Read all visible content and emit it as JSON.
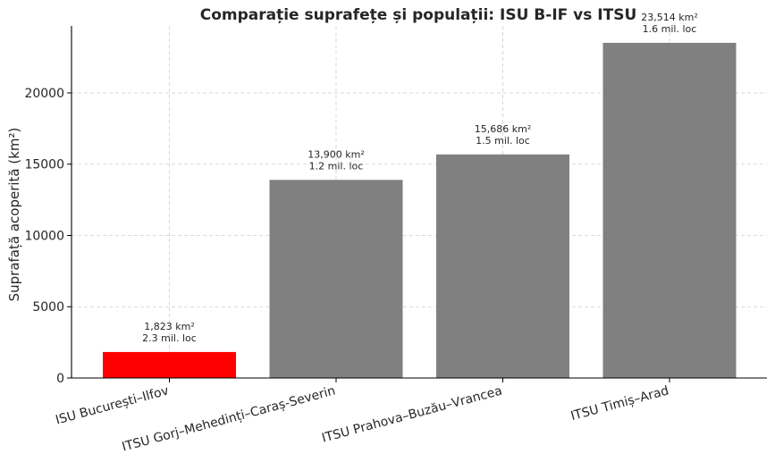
{
  "chart_data": {
    "type": "bar",
    "title": "Comparație suprafețe și populații: ISU B-IF vs ITSU",
    "xlabel": "",
    "ylabel": "Suprafață acoperită (km²)",
    "ylim": [
      0,
      24700
    ],
    "yticks": [
      0,
      5000,
      10000,
      15000,
      20000
    ],
    "grid": true,
    "categories": [
      "ISU București–Ilfov",
      "ITSU Gorj–Mehedinți–Caraș-Severin",
      "ITSU Prahova–Buzău–Vrancea",
      "ITSU Timiș–Arad"
    ],
    "values": [
      1823,
      13900,
      15686,
      23514
    ],
    "colors": [
      "#ff0000",
      "#808080",
      "#808080",
      "#808080"
    ],
    "labels_area": [
      "1,823 km²",
      "13,900 km²",
      "15,686 km²",
      "23,514 km²"
    ],
    "labels_population": [
      "2.3 mil. loc",
      "1.2 mil. loc",
      "1.5 mil. loc",
      "1.6 mil. loc"
    ]
  }
}
